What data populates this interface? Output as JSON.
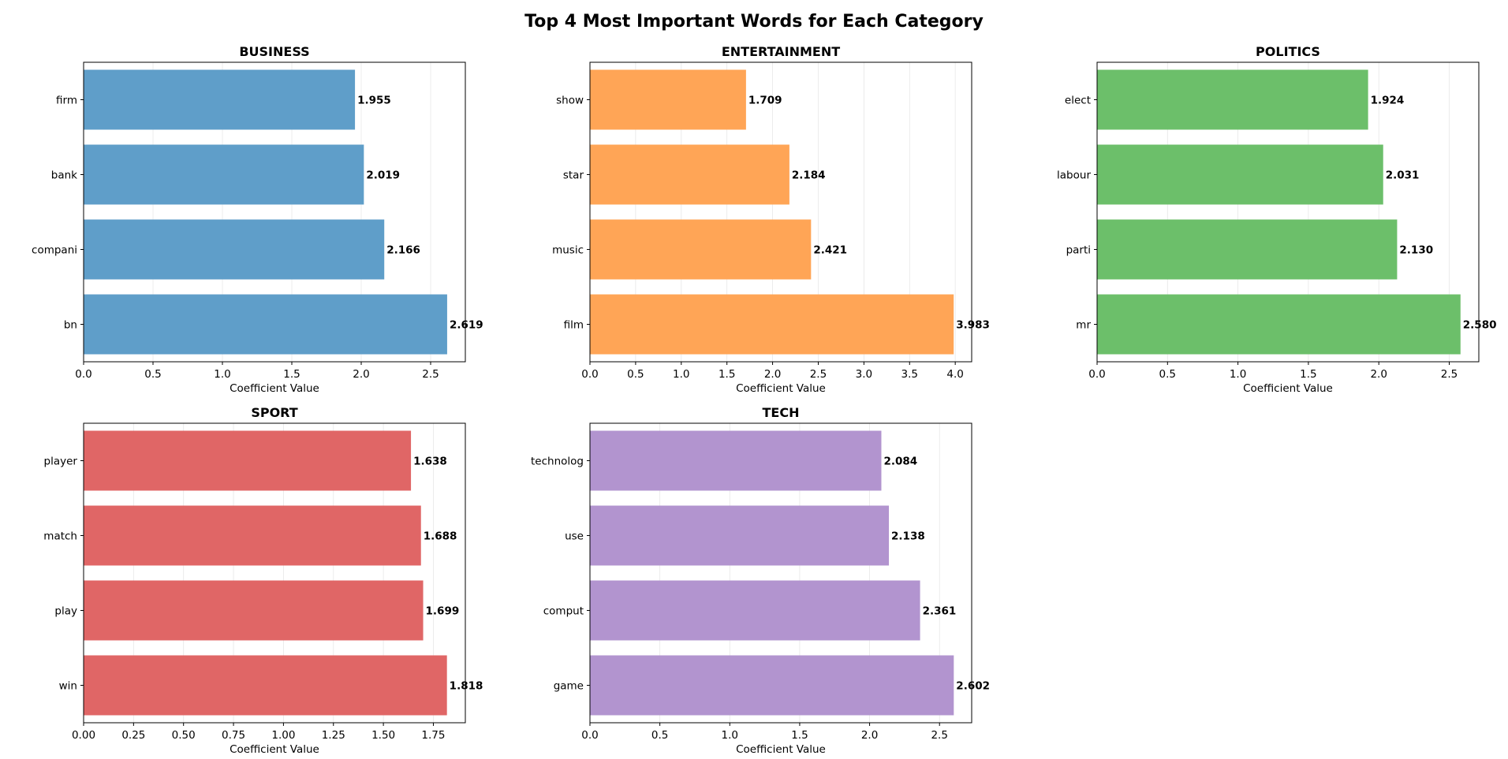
{
  "figure": {
    "title": "Top 4 Most Important Words for Each Category"
  },
  "chart_data": [
    {
      "type": "bar",
      "orientation": "horizontal",
      "title": "BUSINESS",
      "xlabel": "Coefficient Value",
      "ylabel": "",
      "categories": [
        "bn",
        "compani",
        "bank",
        "firm"
      ],
      "values": [
        2.619,
        2.166,
        2.019,
        1.955
      ],
      "data_labels": [
        "2.619",
        "2.166",
        "2.019",
        "1.955"
      ],
      "xlim": [
        0,
        2.75
      ],
      "xticks": [
        0,
        0.5,
        1.0,
        1.5,
        2.0,
        2.5
      ],
      "xtick_labels": [
        "0.0",
        "0.5",
        "1.0",
        "1.5",
        "2.0",
        "2.5"
      ],
      "color": "#5f9ec9",
      "grid": "x"
    },
    {
      "type": "bar",
      "orientation": "horizontal",
      "title": "ENTERTAINMENT",
      "xlabel": "Coefficient Value",
      "ylabel": "",
      "categories": [
        "film",
        "music",
        "star",
        "show"
      ],
      "values": [
        3.983,
        2.421,
        2.184,
        1.709
      ],
      "data_labels": [
        "3.983",
        "2.421",
        "2.184",
        "1.709"
      ],
      "xlim": [
        0,
        4.18
      ],
      "xticks": [
        0,
        0.5,
        1.0,
        1.5,
        2.0,
        2.5,
        3.0,
        3.5,
        4.0
      ],
      "xtick_labels": [
        "0.0",
        "0.5",
        "1.0",
        "1.5",
        "2.0",
        "2.5",
        "3.0",
        "3.5",
        "4.0"
      ],
      "color": "#ffa556",
      "grid": "x"
    },
    {
      "type": "bar",
      "orientation": "horizontal",
      "title": "POLITICS",
      "xlabel": "Coefficient Value",
      "ylabel": "",
      "categories": [
        "mr",
        "parti",
        "labour",
        "elect"
      ],
      "values": [
        2.58,
        2.13,
        2.031,
        1.924
      ],
      "data_labels": [
        "2.580",
        "2.130",
        "2.031",
        "1.924"
      ],
      "xlim": [
        0,
        2.71
      ],
      "xticks": [
        0,
        0.5,
        1.0,
        1.5,
        2.0,
        2.5
      ],
      "xtick_labels": [
        "0.0",
        "0.5",
        "1.0",
        "1.5",
        "2.0",
        "2.5"
      ],
      "color": "#6cbf6a",
      "grid": "x"
    },
    {
      "type": "bar",
      "orientation": "horizontal",
      "title": "SPORT",
      "xlabel": "Coefficient Value",
      "ylabel": "",
      "categories": [
        "win",
        "play",
        "match",
        "player"
      ],
      "values": [
        1.818,
        1.699,
        1.688,
        1.638
      ],
      "data_labels": [
        "1.818",
        "1.699",
        "1.688",
        "1.638"
      ],
      "xlim": [
        0,
        1.91
      ],
      "xticks": [
        0,
        0.25,
        0.5,
        0.75,
        1.0,
        1.25,
        1.5,
        1.75
      ],
      "xtick_labels": [
        "0.00",
        "0.25",
        "0.50",
        "0.75",
        "1.00",
        "1.25",
        "1.50",
        "1.75"
      ],
      "color": "#e06666",
      "grid": "x"
    },
    {
      "type": "bar",
      "orientation": "horizontal",
      "title": "TECH",
      "xlabel": "Coefficient Value",
      "ylabel": "",
      "categories": [
        "game",
        "comput",
        "use",
        "technolog"
      ],
      "values": [
        2.602,
        2.361,
        2.138,
        2.084
      ],
      "data_labels": [
        "2.602",
        "2.361",
        "2.138",
        "2.084"
      ],
      "xlim": [
        0,
        2.73
      ],
      "xticks": [
        0,
        0.5,
        1.0,
        1.5,
        2.0,
        2.5
      ],
      "xtick_labels": [
        "0.0",
        "0.5",
        "1.0",
        "1.5",
        "2.0",
        "2.5"
      ],
      "color": "#b294cf",
      "grid": "x"
    }
  ]
}
